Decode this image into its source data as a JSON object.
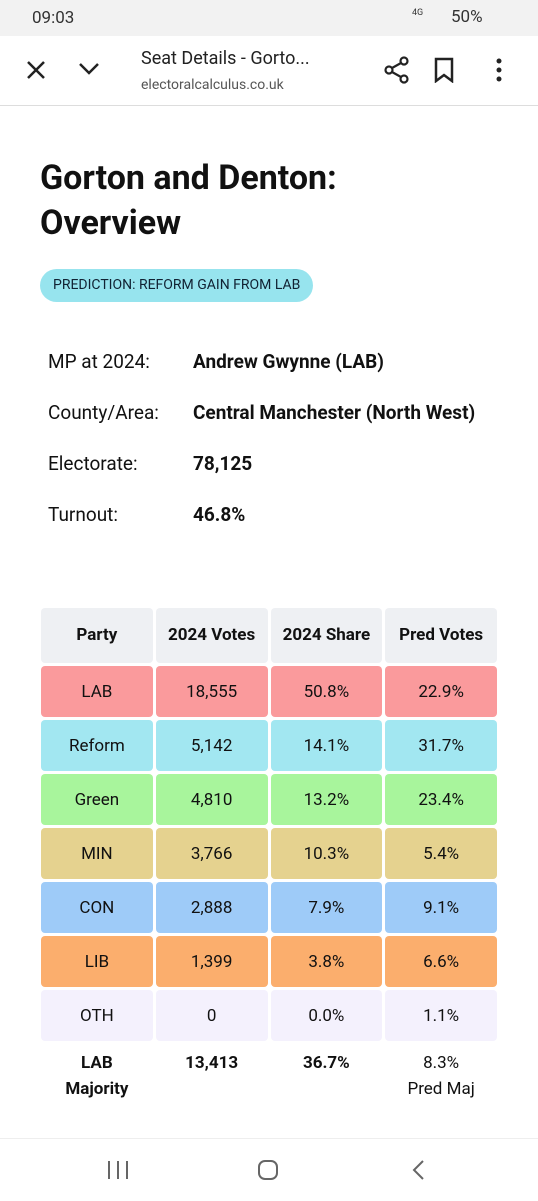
{
  "status_bar": {
    "time": "09:03",
    "network": "4G",
    "battery": "50%"
  },
  "browser_bar": {
    "title": "Seat Details - Gorto...",
    "url": "electoralcalculus.co.uk"
  },
  "page": {
    "title": "Gorton and Denton: Overview",
    "prediction": "PREDICTION: REFORM GAIN FROM LAB",
    "info": [
      {
        "label": "MP at 2024:",
        "value": "Andrew Gwynne  (LAB)"
      },
      {
        "label": "County/Area:",
        "value": "Central Manchester (North West)"
      },
      {
        "label": "Electorate:",
        "value": "78,125"
      },
      {
        "label": "Turnout:",
        "value": "46.8%"
      }
    ],
    "table": {
      "header": [
        "Party",
        "2024 Votes",
        "2024 Share",
        "Pred Votes"
      ],
      "header_color": "#eef0f3",
      "rows": [
        {
          "party": "LAB",
          "color": "#fa9a9c",
          "cells": [
            "18,555",
            "50.8%",
            "22.9%"
          ]
        },
        {
          "party": "Reform",
          "color": "#a2e7f1",
          "cells": [
            "5,142",
            "14.1%",
            "31.7%"
          ]
        },
        {
          "party": "Green",
          "color": "#a8f59c",
          "cells": [
            "4,810",
            "13.2%",
            "23.4%"
          ]
        },
        {
          "party": "MIN",
          "color": "#e5d28f",
          "cells": [
            "3,766",
            "10.3%",
            "5.4%"
          ]
        },
        {
          "party": "CON",
          "color": "#9ecbf8",
          "cells": [
            "2,888",
            "7.9%",
            "9.1%"
          ]
        },
        {
          "party": "LIB",
          "color": "#fbae6d",
          "cells": [
            "1,399",
            "3.8%",
            "6.6%"
          ]
        },
        {
          "party": "OTH",
          "color": "#f4f1fd",
          "cells": [
            "0",
            "0.0%",
            "1.1%"
          ]
        }
      ],
      "footer": {
        "label": "LAB Majority",
        "votes": "13,413",
        "share": "36.7%",
        "pred": "8.3%",
        "pred_label": "Pred Maj"
      }
    }
  }
}
